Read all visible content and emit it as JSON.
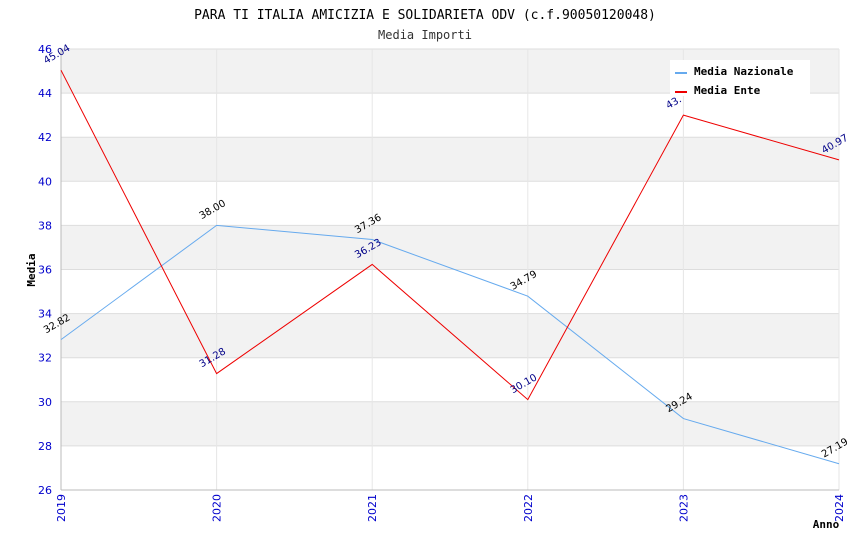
{
  "chart_data": {
    "type": "line",
    "title": "PARA TI ITALIA AMICIZIA E SOLIDARIETA ODV (c.f.90050120048)",
    "subtitle": "Media Importi",
    "xlabel": "Anno",
    "ylabel": "Media",
    "x": [
      "2019",
      "2020",
      "2021",
      "2022",
      "2023",
      "2024"
    ],
    "ylim": [
      26,
      46
    ],
    "yticks": [
      26,
      28,
      30,
      32,
      34,
      36,
      38,
      40,
      42,
      44,
      46
    ],
    "legend_position": "top-right",
    "series": [
      {
        "name": "Media Nazionale",
        "color": "#66aaee",
        "label_color": "#000000",
        "values": [
          32.82,
          38.0,
          37.36,
          34.79,
          29.24,
          27.19
        ],
        "labels": [
          "32.82",
          "38.00",
          "37.36",
          "34.79",
          "29.24",
          "27.19"
        ]
      },
      {
        "name": "Media Ente",
        "color": "#ee0000",
        "label_color": "#000088",
        "values": [
          45.04,
          31.28,
          36.23,
          30.1,
          43.0,
          40.97
        ],
        "labels": [
          "45.04",
          "31.28",
          "36.23",
          "30.10",
          "43.",
          "40.97"
        ]
      }
    ]
  }
}
